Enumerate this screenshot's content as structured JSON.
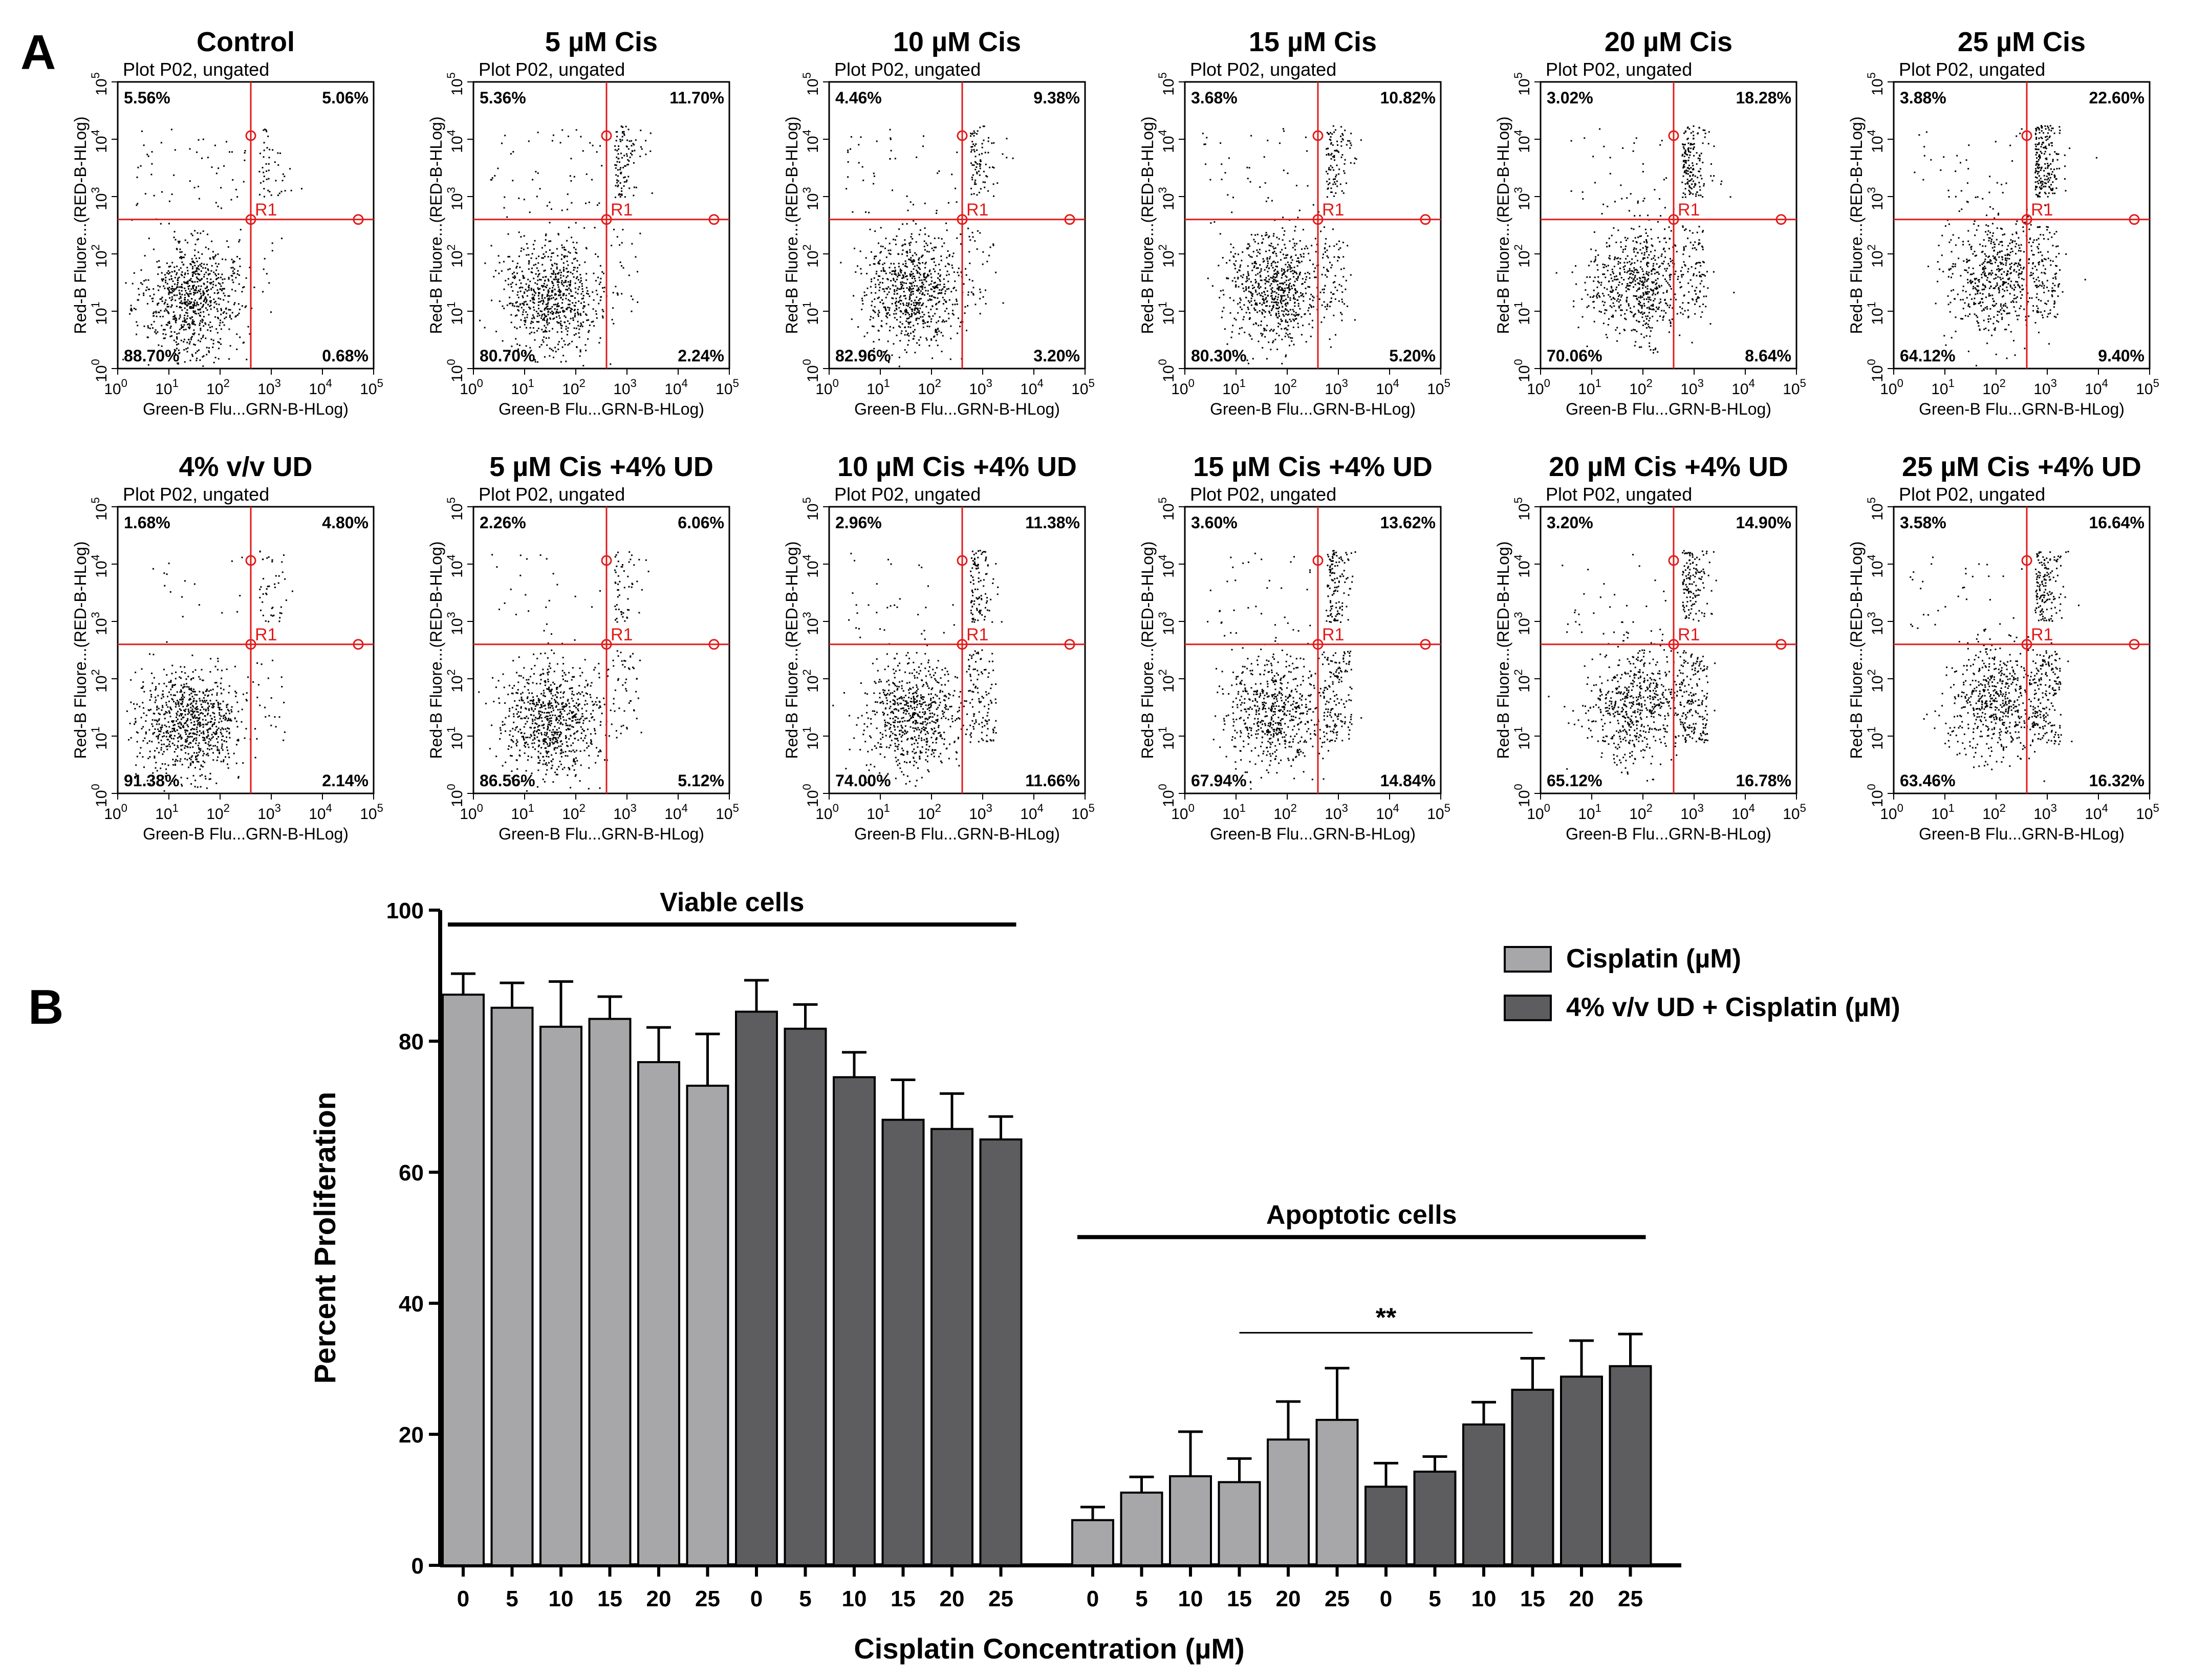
{
  "chart_data": [
    {
      "panel": "A",
      "type": "scatter",
      "gate_label": "Plot P02, ungated",
      "region_label": "R1",
      "xlabel": "Green-B Flu...GRN-B-HLog)",
      "ylabel": "Red-B Fluore...(RED-B-HLog)",
      "xticks": [
        "0",
        "1",
        "2",
        "3",
        "4",
        "5"
      ],
      "yticks": [
        "0",
        "1",
        "2",
        "3",
        "4",
        "5"
      ],
      "tick_base": "10",
      "colors": {
        "points": "#000000",
        "gate": "#e21b1b"
      },
      "plots": [
        {
          "title": "Control",
          "quadrants": {
            "ul": "5.56%",
            "ur": "5.06%",
            "ll": "88.70%",
            "lr": "0.68%"
          }
        },
        {
          "title": "5 µM Cis",
          "quadrants": {
            "ul": "5.36%",
            "ur": "11.70%",
            "ll": "80.70%",
            "lr": "2.24%"
          }
        },
        {
          "title": "10 µM Cis",
          "quadrants": {
            "ul": "4.46%",
            "ur": "9.38%",
            "ll": "82.96%",
            "lr": "3.20%"
          }
        },
        {
          "title": "15 µM Cis",
          "quadrants": {
            "ul": "3.68%",
            "ur": "10.82%",
            "ll": "80.30%",
            "lr": "5.20%"
          }
        },
        {
          "title": "20 µM Cis",
          "quadrants": {
            "ul": "3.02%",
            "ur": "18.28%",
            "ll": "70.06%",
            "lr": "8.64%"
          }
        },
        {
          "title": "25 µM Cis",
          "quadrants": {
            "ul": "3.88%",
            "ur": "22.60%",
            "ll": "64.12%",
            "lr": "9.40%"
          }
        },
        {
          "title": "4% v/v UD",
          "quadrants": {
            "ul": "1.68%",
            "ur": "4.80%",
            "ll": "91.38%",
            "lr": "2.14%"
          }
        },
        {
          "title": "5 µM Cis +4% UD",
          "quadrants": {
            "ul": "2.26%",
            "ur": "6.06%",
            "ll": "86.56%",
            "lr": "5.12%"
          }
        },
        {
          "title": "10 µM Cis +4% UD",
          "quadrants": {
            "ul": "2.96%",
            "ur": "11.38%",
            "ll": "74.00%",
            "lr": "11.66%"
          }
        },
        {
          "title": "15 µM Cis +4% UD",
          "quadrants": {
            "ul": "3.60%",
            "ur": "13.62%",
            "ll": "67.94%",
            "lr": "14.84%"
          }
        },
        {
          "title": "20 µM Cis +4% UD",
          "quadrants": {
            "ul": "3.20%",
            "ur": "14.90%",
            "ll": "65.12%",
            "lr": "16.78%"
          }
        },
        {
          "title": "25 µM Cis +4% UD",
          "quadrants": {
            "ul": "3.58%",
            "ur": "16.64%",
            "ll": "63.46%",
            "lr": "16.32%"
          }
        }
      ]
    },
    {
      "panel": "B",
      "type": "bar",
      "ylabel": "Percent Proliferation",
      "xlabel": "Cisplatin Concentration (µM)",
      "ylim": [
        0,
        100
      ],
      "yticks": [
        0,
        20,
        40,
        60,
        80,
        100
      ],
      "categories": [
        "0",
        "5",
        "10",
        "15",
        "20",
        "25"
      ],
      "groups": [
        {
          "name": "Viable cells",
          "series": [
            {
              "name": "Cisplatin (µM)",
              "values": [
                87.1,
                85.1,
                82.2,
                83.4,
                76.8,
                73.2
              ],
              "errors": [
                3.2,
                3.8,
                6.9,
                3.4,
                5.3,
                7.9
              ]
            },
            {
              "name": "4% v/v UD + Cisplatin (µM)",
              "values": [
                84.5,
                81.9,
                74.5,
                68.0,
                66.6,
                65.0
              ],
              "errors": [
                4.8,
                3.7,
                3.8,
                6.1,
                5.4,
                3.5
              ]
            }
          ]
        },
        {
          "name": "Apoptotic cells",
          "series": [
            {
              "name": "Cisplatin (µM)",
              "values": [
                6.9,
                11.1,
                13.6,
                12.7,
                19.2,
                22.2
              ],
              "errors": [
                2.0,
                2.4,
                6.8,
                3.6,
                5.8,
                7.9
              ]
            },
            {
              "name": "4% v/v UD + Cisplatin (µM)",
              "values": [
                12.0,
                14.3,
                21.5,
                26.8,
                28.8,
                30.4
              ],
              "errors": [
                3.6,
                2.3,
                3.4,
                4.8,
                5.5,
                4.9
              ]
            }
          ]
        }
      ],
      "significance": {
        "label": "**",
        "from": "Apoptotic cells: Cisplatin (µM) 15",
        "to": "Apoptotic cells: 4% v/v UD + Cisplatin (µM) 15"
      },
      "legend": {
        "position": "top-right",
        "entries": [
          "Cisplatin (µM)",
          "4% v/v UD + Cisplatin (µM)"
        ]
      },
      "colors": {
        "cisplatin": "#a7a7aa",
        "ud_cisplatin": "#5d5d5f",
        "errorbar": "#000000"
      }
    }
  ]
}
